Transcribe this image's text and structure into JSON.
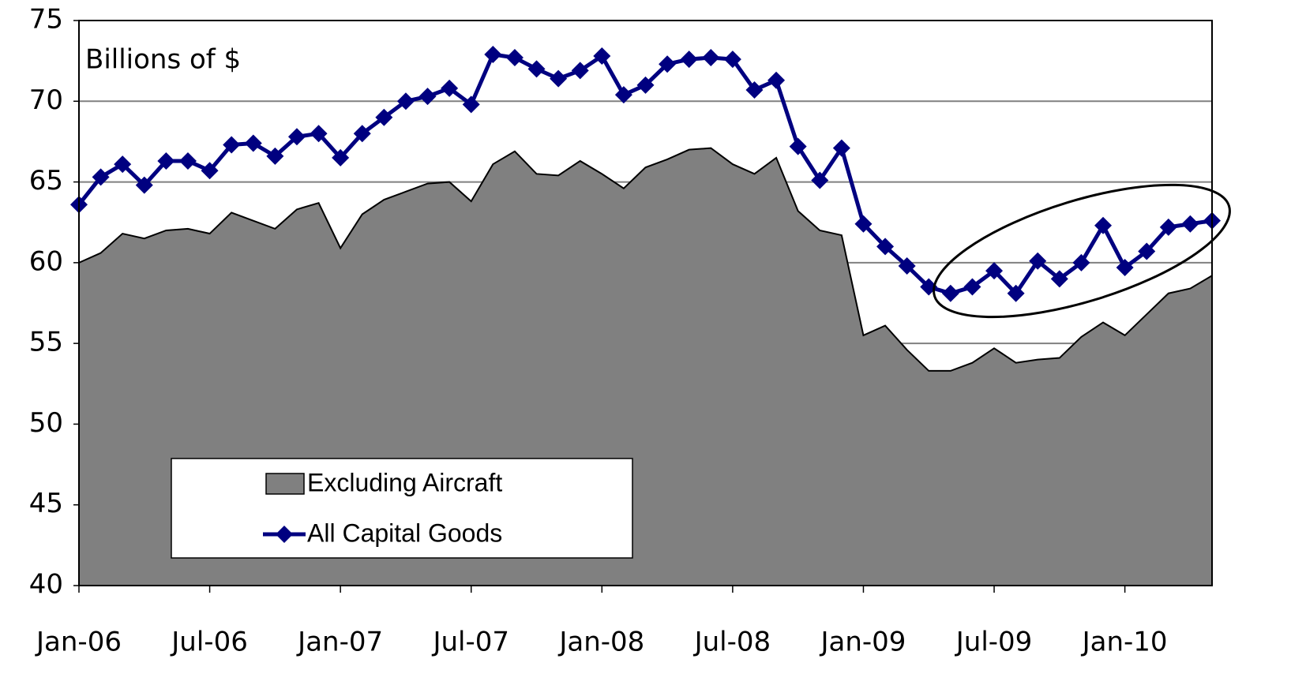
{
  "chart_data": {
    "type": "area-line",
    "annotation": "Billions of $",
    "categories": [
      "Jan-06",
      null,
      null,
      null,
      null,
      null,
      "Jul-06",
      null,
      null,
      null,
      null,
      null,
      "Jan-07",
      null,
      null,
      null,
      null,
      null,
      "Jul-07",
      null,
      null,
      null,
      null,
      null,
      "Jan-08",
      null,
      null,
      null,
      null,
      null,
      "Jul-08",
      null,
      null,
      null,
      null,
      null,
      "Jan-09",
      null,
      null,
      null,
      null,
      null,
      "Jul-09",
      null,
      null,
      null,
      null,
      null,
      "Jan-10",
      null,
      null,
      null,
      null
    ],
    "series": [
      {
        "name": "Excluding Aircraft",
        "kind": "area",
        "color": "#808080",
        "values": [
          60.0,
          60.6,
          61.8,
          61.5,
          62.0,
          62.1,
          61.8,
          63.1,
          62.6,
          62.1,
          63.3,
          63.7,
          60.9,
          63.0,
          63.9,
          64.4,
          64.9,
          65.0,
          63.8,
          66.1,
          66.9,
          65.5,
          65.4,
          66.3,
          65.5,
          64.6,
          65.9,
          66.4,
          67.0,
          67.1,
          66.1,
          65.5,
          66.5,
          63.2,
          62.0,
          61.7,
          55.5,
          56.1,
          54.6,
          53.3,
          53.3,
          53.8,
          54.7,
          53.8,
          54.0,
          54.1,
          55.4,
          56.3,
          55.5,
          56.8,
          58.1,
          58.4,
          59.2
        ]
      },
      {
        "name": "All Capital Goods",
        "kind": "line",
        "color": "#000080",
        "values": [
          63.6,
          65.3,
          66.1,
          64.8,
          66.3,
          66.3,
          65.7,
          67.3,
          67.4,
          66.6,
          67.8,
          68.0,
          66.5,
          68.0,
          69.0,
          70.0,
          70.3,
          70.8,
          69.8,
          72.9,
          72.7,
          72.0,
          71.4,
          71.9,
          72.8,
          70.4,
          71.0,
          72.3,
          72.6,
          72.7,
          72.6,
          70.7,
          71.3,
          67.2,
          65.1,
          67.1,
          62.4,
          61.0,
          59.8,
          58.5,
          58.1,
          58.5,
          59.5,
          58.1,
          60.1,
          59.0,
          60.0,
          62.3,
          59.7,
          60.7,
          62.2,
          62.4,
          62.6
        ]
      }
    ],
    "ylim": [
      40,
      75
    ],
    "yticks": [
      40,
      45,
      50,
      55,
      60,
      65,
      70,
      75
    ],
    "grid": true,
    "legend": "lower left"
  }
}
